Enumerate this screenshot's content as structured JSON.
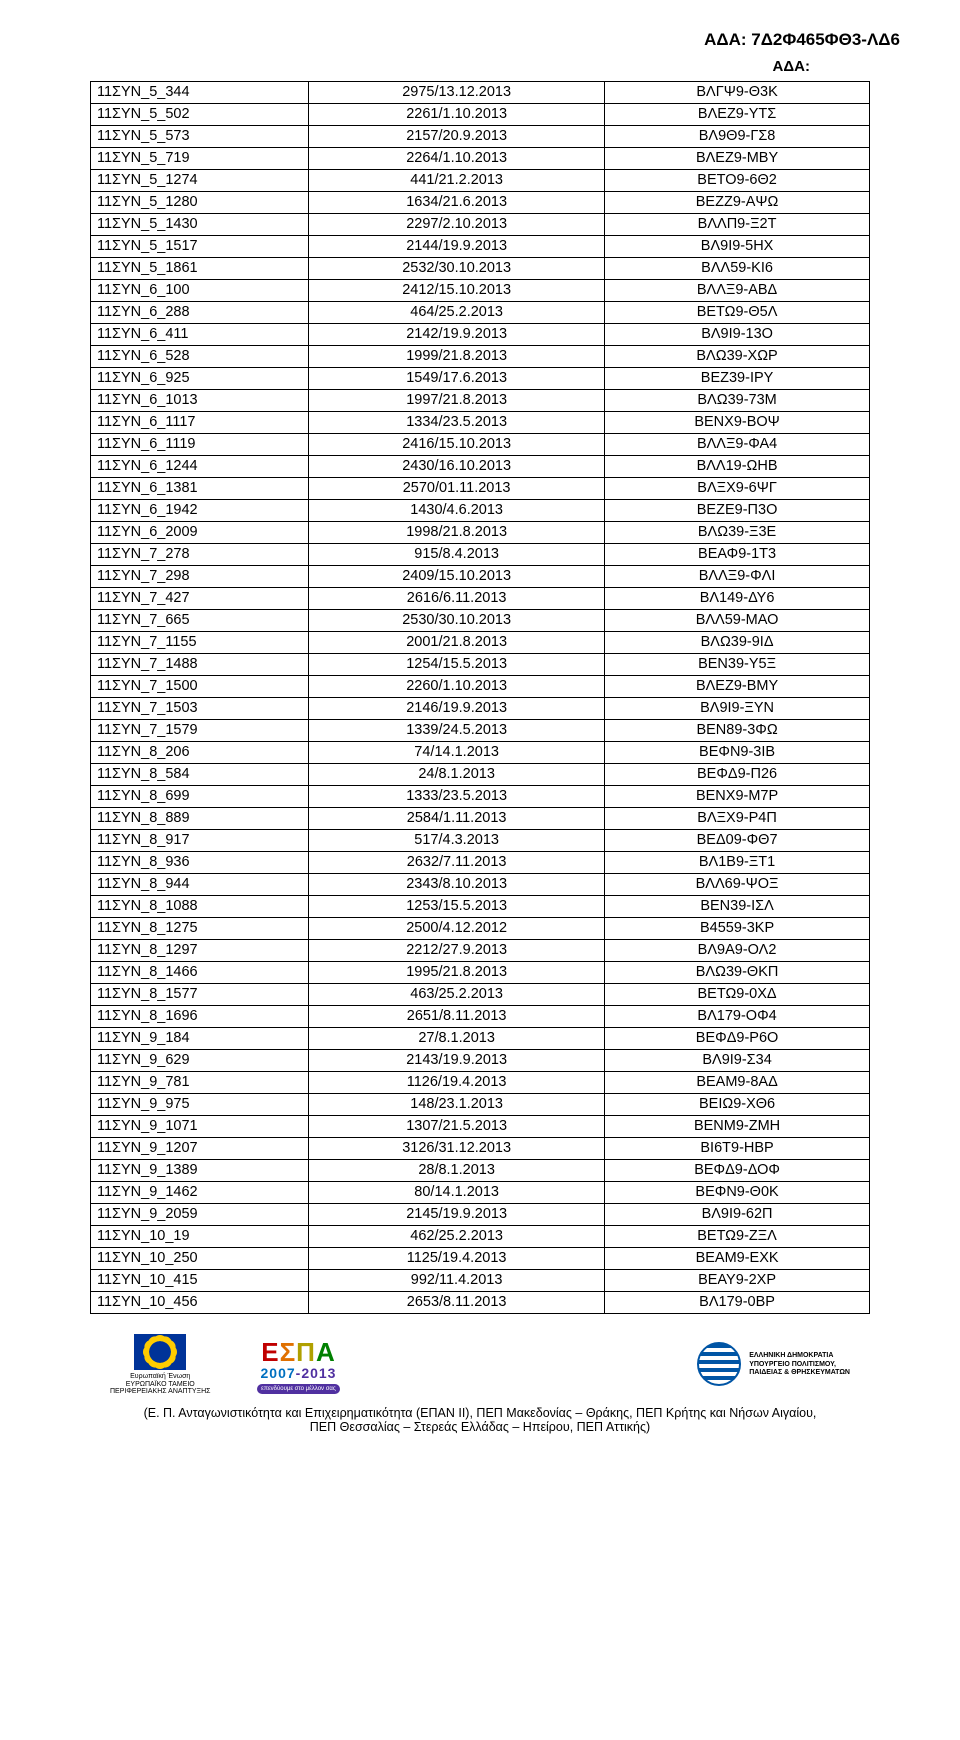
{
  "header": {
    "ada_full": "ΑΔΑ: 7Δ2Φ465ΦΘ3-ΛΔ6",
    "ada_short": "ΑΔΑ:"
  },
  "table": {
    "rows": [
      [
        "11ΣΥΝ_5_344",
        "2975/13.12.2013",
        "ΒΛΓΨ9-Θ3Κ"
      ],
      [
        "11ΣΥΝ_5_502",
        "2261/1.10.2013",
        "ΒΛΕΖ9-ΥΤΣ"
      ],
      [
        "11ΣΥΝ_5_573",
        "2157/20.9.2013",
        "ΒΛ9Θ9-ΓΣ8"
      ],
      [
        "11ΣΥΝ_5_719",
        "2264/1.10.2013",
        "ΒΛΕΖ9-ΜΒΥ"
      ],
      [
        "11ΣΥΝ_5_1274",
        "441/21.2.2013",
        "ΒΕΤΟ9-6Θ2"
      ],
      [
        "11ΣΥΝ_5_1280",
        "1634/21.6.2013",
        "ΒΕΖΖ9-ΑΨΩ"
      ],
      [
        "11ΣΥΝ_5_1430",
        "2297/2.10.2013",
        "ΒΛΛΠ9-Ξ2Τ"
      ],
      [
        "11ΣΥΝ_5_1517",
        "2144/19.9.2013",
        "ΒΛ9Ι9-5ΗΧ"
      ],
      [
        "11ΣΥΝ_5_1861",
        "2532/30.10.2013",
        "ΒΛΛ59-ΚΙ6"
      ],
      [
        "11ΣΥΝ_6_100",
        "2412/15.10.2013",
        "ΒΛΛΞ9-ΑΒΔ"
      ],
      [
        "11ΣΥΝ_6_288",
        "464/25.2.2013",
        "ΒΕΤΩ9-Θ5Λ"
      ],
      [
        "11ΣΥΝ_6_411",
        "2142/19.9.2013",
        "ΒΛ9І9-13Ο"
      ],
      [
        "11ΣΥΝ_6_528",
        "1999/21.8.2013",
        "ΒΛΩ39-ΧΩΡ"
      ],
      [
        "11ΣΥΝ_6_925",
        "1549/17.6.2013",
        "ΒΕΖ39-ΙΡΥ"
      ],
      [
        "11ΣΥΝ_6_1013",
        "1997/21.8.2013",
        "ΒΛΩ39-73Μ"
      ],
      [
        "11ΣΥΝ_6_1117",
        "1334/23.5.2013",
        "ΒΕΝΧ9-ΒΟΨ"
      ],
      [
        "11ΣΥΝ_6_1119",
        "2416/15.10.2013",
        "ΒΛΛΞ9-ΦΑ4"
      ],
      [
        "11ΣΥΝ_6_1244",
        "2430/16.10.2013",
        "ΒΛΛ19-ΩΗΒ"
      ],
      [
        "11ΣΥΝ_6_1381",
        "2570/01.11.2013",
        "ΒΛΞΧ9-6ΨΓ"
      ],
      [
        "11ΣΥΝ_6_1942",
        "1430/4.6.2013",
        "ΒΕΖΕ9-Π3Ο"
      ],
      [
        "11ΣΥΝ_6_2009",
        "1998/21.8.2013",
        "ΒΛΩ39-Ξ3Ε"
      ],
      [
        "11ΣΥΝ_7_278",
        "915/8.4.2013",
        "ΒΕΑΦ9-1Τ3"
      ],
      [
        "11ΣΥΝ_7_298",
        "2409/15.10.2013",
        "ΒΛΛΞ9-ΦΛΙ"
      ],
      [
        "11ΣΥΝ_7_427",
        "2616/6.11.2013",
        "ΒΛ149-ΔΥ6"
      ],
      [
        "11ΣΥΝ_7_665",
        "2530/30.10.2013",
        "ΒΛΛ59-ΜΑΟ"
      ],
      [
        "11ΣΥΝ_7_1155",
        "2001/21.8.2013",
        "ΒΛΩ39-9ΙΔ"
      ],
      [
        "11ΣΥΝ_7_1488",
        "1254/15.5.2013",
        "ΒΕΝ39-Υ5Ξ"
      ],
      [
        "11ΣΥΝ_7_1500",
        "2260/1.10.2013",
        "ΒΛΕΖ9-ΒΜΥ"
      ],
      [
        "11ΣΥΝ_7_1503",
        "2146/19.9.2013",
        "ΒΛ9І9-ΞΥΝ"
      ],
      [
        "11ΣΥΝ_7_1579",
        "1339/24.5.2013",
        "ΒΕΝ89-3ΦΩ"
      ],
      [
        "11ΣΥΝ_8_206",
        "74/14.1.2013",
        "ΒΕΦΝ9-3ΙΒ"
      ],
      [
        "11ΣΥΝ_8_584",
        "24/8.1.2013",
        "ΒΕΦΔ9-Π26"
      ],
      [
        "11ΣΥΝ_8_699",
        "1333/23.5.2013",
        "ΒΕΝΧ9-Μ7Ρ"
      ],
      [
        "11ΣΥΝ_8_889",
        "2584/1.11.2013",
        "ΒΛΞΧ9-Ρ4Π"
      ],
      [
        "11ΣΥΝ_8_917",
        "517/4.3.2013",
        "ΒΕΔ09-ΦΘ7"
      ],
      [
        "11ΣΥΝ_8_936",
        "2632/7.11.2013",
        "ΒΛ1Β9-ΞΤ1"
      ],
      [
        "11ΣΥΝ_8_944",
        "2343/8.10.2013",
        "ΒΛΛ69-ΨΟΞ"
      ],
      [
        "11ΣΥΝ_8_1088",
        "1253/15.5.2013",
        "ΒΕΝ39-ΙΣΛ"
      ],
      [
        "11ΣΥΝ_8_1275",
        "2500/4.12.2012",
        "Β4559-3ΚΡ"
      ],
      [
        "11ΣΥΝ_8_1297",
        "2212/27.9.2013",
        "ΒΛ9Α9-ΟΛ2"
      ],
      [
        "11ΣΥΝ_8_1466",
        "1995/21.8.2013",
        "ΒΛΩ39-ΘΚΠ"
      ],
      [
        "11ΣΥΝ_8_1577",
        "463/25.2.2013",
        "ΒΕΤΩ9-0ΧΔ"
      ],
      [
        "11ΣΥΝ_8_1696",
        "2651/8.11.2013",
        "ΒΛ179-ΟΦ4"
      ],
      [
        "11ΣΥΝ_9_184",
        "27/8.1.2013",
        "ΒΕΦΔ9-Ρ6Ο"
      ],
      [
        "11ΣΥΝ_9_629",
        "2143/19.9.2013",
        "ΒΛ9І9-Σ34"
      ],
      [
        "11ΣΥΝ_9_781",
        "1126/19.4.2013",
        "ΒΕΑΜ9-8ΑΔ"
      ],
      [
        "11ΣΥΝ_9_975",
        "148/23.1.2013",
        "ΒΕΙΩ9-ΧΘ6"
      ],
      [
        "11ΣΥΝ_9_1071",
        "1307/21.5.2013",
        "ΒΕΝΜ9-ΖΜΗ"
      ],
      [
        "11ΣΥΝ_9_1207",
        "3126/31.12.2013",
        "ΒΙ6Τ9-ΗΒΡ"
      ],
      [
        "11ΣΥΝ_9_1389",
        "28/8.1.2013",
        "ΒΕΦΔ9-ΔΟΦ"
      ],
      [
        "11ΣΥΝ_9_1462",
        "80/14.1.2013",
        "ΒΕΦΝ9-Θ0Κ"
      ],
      [
        "11ΣΥΝ_9_2059",
        "2145/19.9.2013",
        "ΒΛ9І9-62Π"
      ],
      [
        "11ΣΥΝ_10_19",
        "462/25.2.2013",
        "ΒΕΤΩ9-ΖΞΛ"
      ],
      [
        "11ΣΥΝ_10_250",
        "1125/19.4.2013",
        "ΒΕΑΜ9-ΕΧΚ"
      ],
      [
        "11ΣΥΝ_10_415",
        "992/11.4.2013",
        "ΒΕΑΥ9-2ΧΡ"
      ],
      [
        "11ΣΥΝ_10_456",
        "2653/8.11.2013",
        "ΒΛ179-0ΒΡ"
      ]
    ]
  },
  "logos": {
    "eu_line1": "Ευρωπαϊκή Ένωση",
    "eu_line2": "ΕΥΡΩΠΑΪΚΟ ΤΑΜΕΙΟ",
    "eu_line3": "ΠΕΡΙΦΕΡΕΙΑΚΗΣ ΑΝΑΠΤΥΞΗΣ",
    "espa_sub": "επενδύουμε στο μέλλον σας",
    "gr_line1": "ΕΛΛΗΝΙΚΗ ΔΗΜΟΚΡΑΤΙΑ",
    "gr_line2": "ΥΠΟΥΡΓΕΙΟ ΠΟΛΙΤΙΣΜΟΥ,",
    "gr_line3": "ΠΑΙΔΕΙΑΣ & ΘΡΗΣΚΕΥΜΑΤΩΝ"
  },
  "footer": {
    "line1": "(Ε. Π. Ανταγωνιστικότητα και Επιχειρηματικότητα (ΕΠΑΝ ΙΙ), ΠΕΠ Μακεδονίας – Θράκης, ΠΕΠ Κρήτης και Νήσων Αιγαίου,",
    "line2": "ΠΕΠ Θεσσαλίας – Στερεάς Ελλάδας – Ηπείρου, ΠΕΠ Αττικής)"
  }
}
